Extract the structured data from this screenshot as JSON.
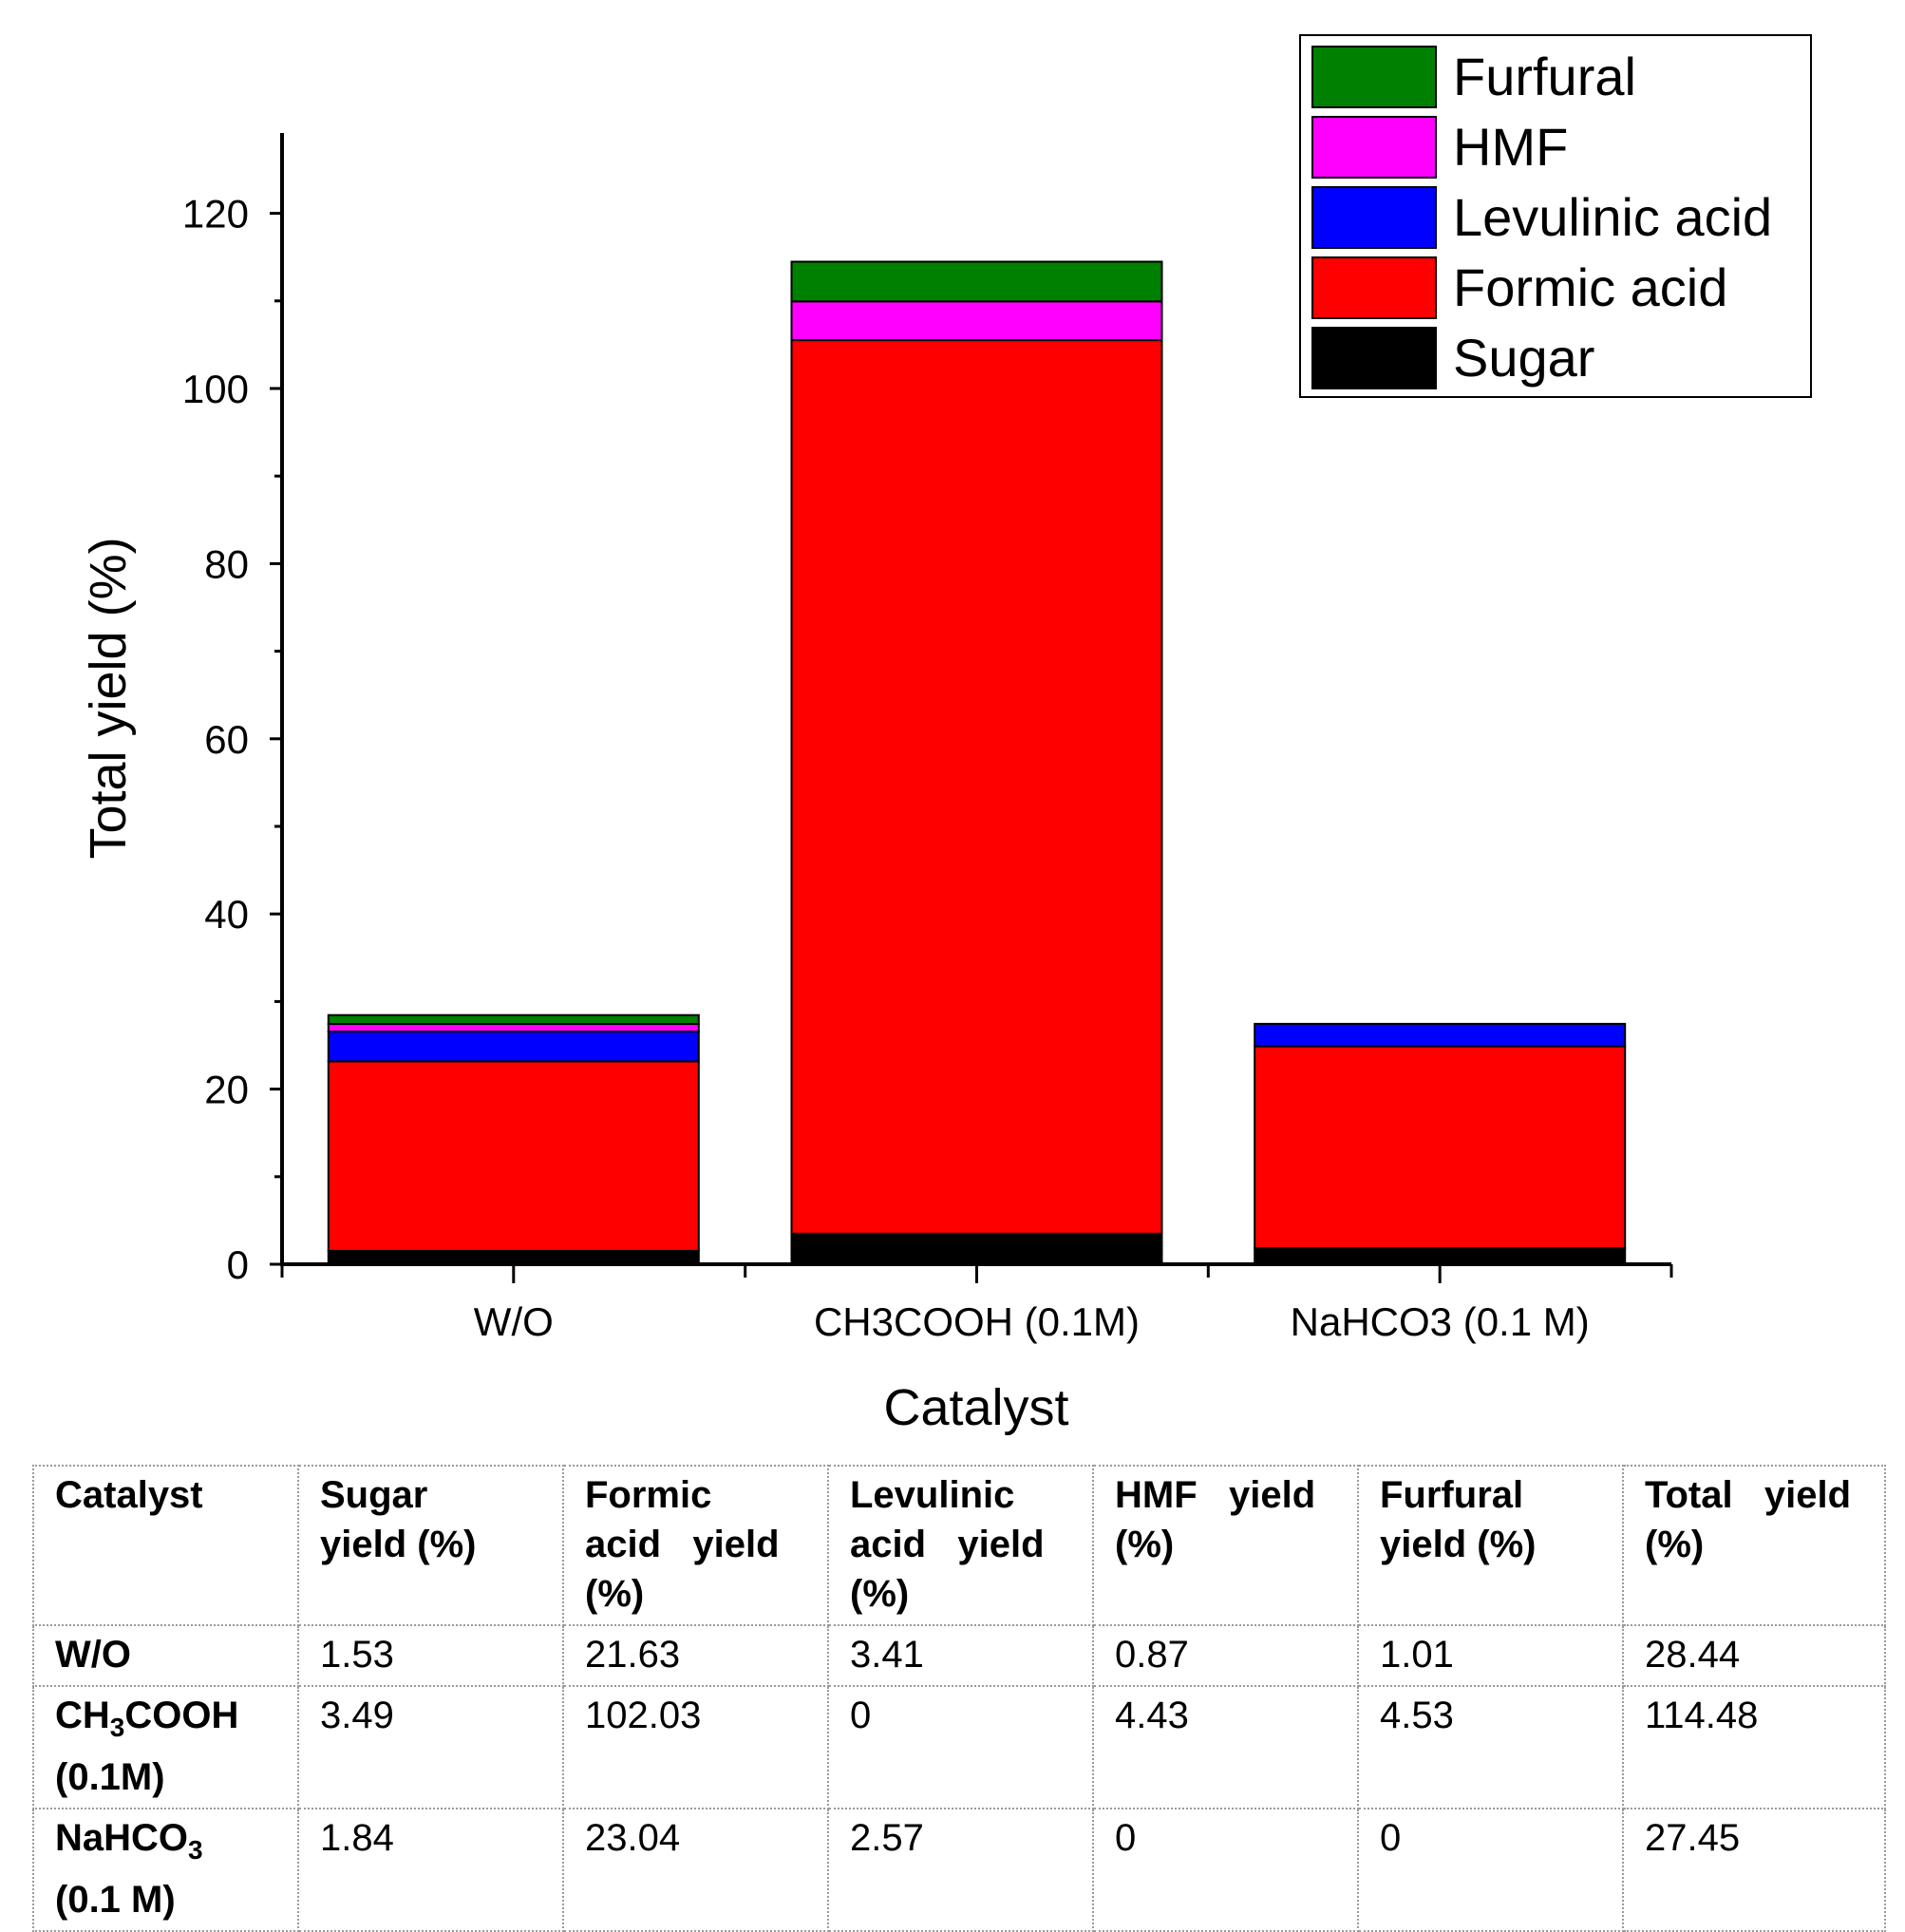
{
  "chart_data": {
    "type": "bar",
    "stacked": true,
    "categories": [
      "W/O",
      "CH3COOH (0.1M)",
      "NaHCO3 (0.1 M)"
    ],
    "series": [
      {
        "name": "Sugar",
        "color": "#000000",
        "values": [
          1.53,
          3.49,
          1.84
        ]
      },
      {
        "name": "Formic acid",
        "color": "#ff0000",
        "values": [
          21.63,
          102.03,
          23.04
        ]
      },
      {
        "name": "Levulinic acid",
        "color": "#0000ff",
        "values": [
          3.41,
          0,
          2.57
        ]
      },
      {
        "name": "HMF",
        "color": "#ff00ff",
        "values": [
          0.87,
          4.43,
          0
        ]
      },
      {
        "name": "Furfural",
        "color": "#008000",
        "values": [
          1.01,
          4.53,
          0
        ]
      }
    ],
    "title": "",
    "xlabel": "Catalyst",
    "ylabel": "Total yield (%)",
    "ylim": [
      0,
      130
    ],
    "yticks": [
      0,
      20,
      40,
      60,
      80,
      100,
      120
    ],
    "ytick_labels": [
      "0",
      "20",
      "40",
      "60",
      "80",
      "100",
      "120"
    ],
    "legend_position": "top-right",
    "legend_order": [
      "Furfural",
      "HMF",
      "Levulinic acid",
      "Formic acid",
      "Sugar"
    ]
  },
  "table": {
    "headers": [
      [
        "Catalyst"
      ],
      [
        "Sugar",
        "yield (%)"
      ],
      [
        "Formic",
        "acid   yield",
        "(%)"
      ],
      [
        "Levulinic",
        "acid   yield",
        "(%)"
      ],
      [
        "HMF   yield",
        "(%)"
      ],
      [
        "Furfural",
        "yield (%)"
      ],
      [
        "Total   yield",
        "(%)"
      ]
    ],
    "rows": [
      {
        "catalyst_main": "W/O",
        "catalyst_sub": "",
        "catalyst_rest": "",
        "catalyst_line2": "",
        "values": [
          "1.53",
          "21.63",
          "3.41",
          "0.87",
          "1.01",
          "28.44"
        ]
      },
      {
        "catalyst_main": "CH",
        "catalyst_sub": "3",
        "catalyst_rest": "COOH",
        "catalyst_line2": "(0.1M)",
        "values": [
          "3.49",
          "102.03",
          "0",
          "4.43",
          "4.53",
          "114.48"
        ]
      },
      {
        "catalyst_main": "NaHCO",
        "catalyst_sub": "3",
        "catalyst_rest": "",
        "catalyst_line2": "(0.1 M)",
        "values": [
          "1.84",
          "23.04",
          "2.57",
          "0",
          "0",
          "27.45"
        ]
      }
    ]
  }
}
